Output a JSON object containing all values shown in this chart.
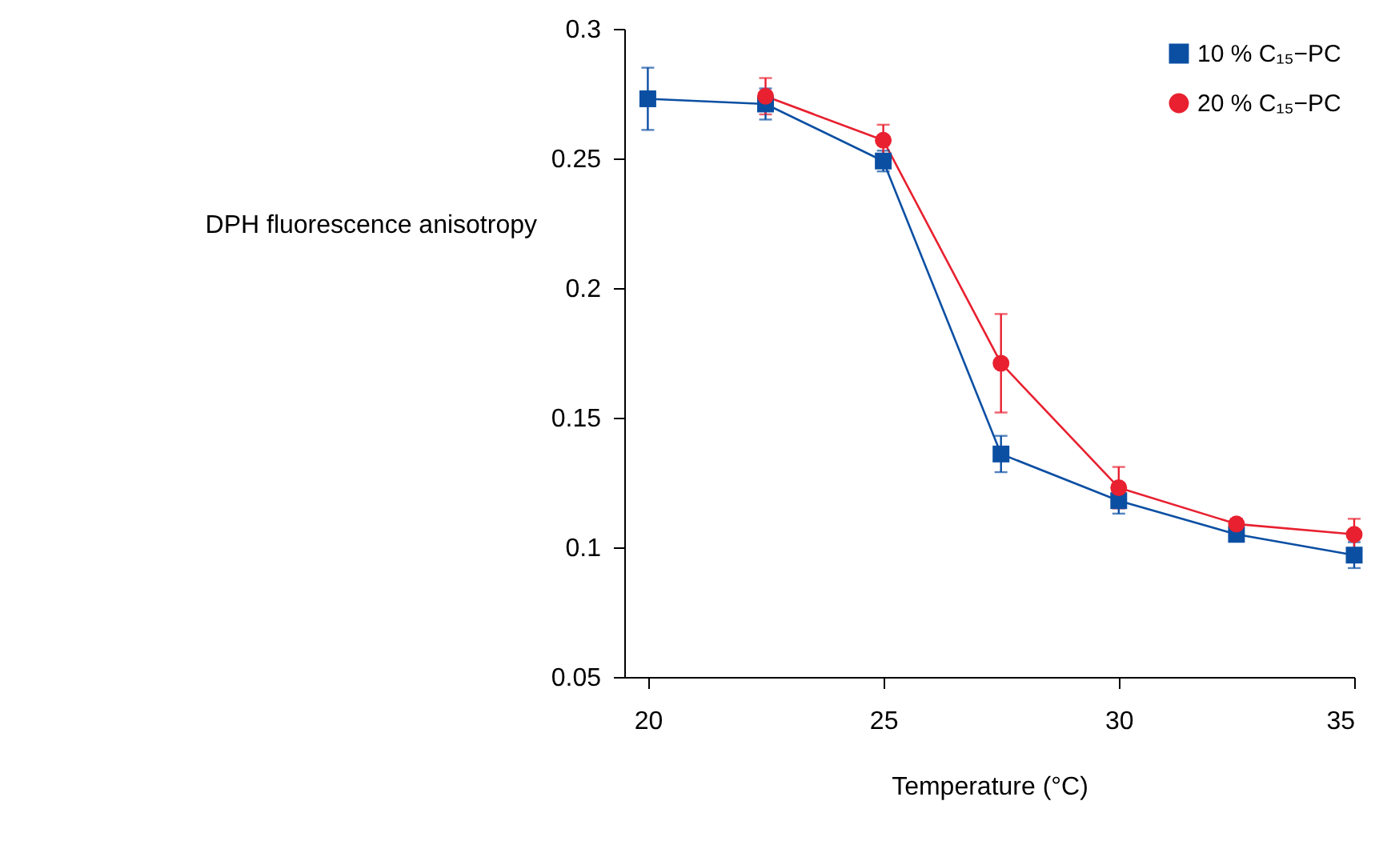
{
  "chart_data": {
    "type": "line",
    "xlabel": "Temperature (°C)",
    "ylabel": "DPH fluorescence anisotropy",
    "x": [
      20,
      22.5,
      25,
      27.5,
      30,
      32.5,
      35
    ],
    "series": [
      {
        "name": "10 % C₁₅−PC",
        "color": "#0b4fa3",
        "marker": "square",
        "values": [
          0.273,
          0.271,
          0.249,
          0.136,
          0.118,
          0.105,
          0.097
        ],
        "errors": [
          0.012,
          0.006,
          0.004,
          0.007,
          0.005,
          0.002,
          0.005
        ]
      },
      {
        "name": "20 % C₁₅−PC",
        "color": "#e8202f",
        "marker": "circle",
        "values": [
          null,
          0.274,
          0.257,
          0.171,
          0.123,
          0.109,
          0.105
        ],
        "errors": [
          null,
          0.007,
          0.006,
          0.019,
          0.008,
          0.002,
          0.006
        ]
      }
    ],
    "xlim": [
      19.5,
      35
    ],
    "xticks": [
      20,
      25,
      30,
      35
    ],
    "ylim": [
      0.05,
      0.3
    ],
    "yticks": [
      0.05,
      {
        "value": 0.1,
        "label": "0.1"
      },
      0.15,
      {
        "value": 0.2,
        "label": "0.2"
      },
      0.25,
      {
        "value": 0.3,
        "label": "0.3"
      }
    ],
    "grid": false,
    "legend": "top right",
    "line_style": "solid"
  }
}
